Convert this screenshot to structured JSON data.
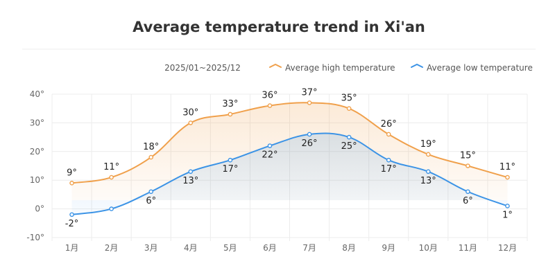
{
  "chart_data": {
    "type": "line",
    "title": "Average temperature trend in Xi'an",
    "date_range": "2025/01~2025/12",
    "categories": [
      "1月",
      "2月",
      "3月",
      "4月",
      "5月",
      "6月",
      "7月",
      "8月",
      "9月",
      "10月",
      "11月",
      "12月"
    ],
    "series": [
      {
        "name": "Average high temperature",
        "color": "#f0a04b",
        "values": [
          9,
          11,
          18,
          30,
          33,
          36,
          37,
          35,
          26,
          19,
          15,
          11
        ],
        "labels": [
          "9°",
          "11°",
          "18°",
          "30°",
          "33°",
          "36°",
          "37°",
          "35°",
          "26°",
          "19°",
          "15°",
          "11°"
        ]
      },
      {
        "name": "Average low temperature",
        "color": "#3b93e6",
        "values": [
          -2,
          0,
          6,
          13,
          17,
          22,
          26,
          25,
          17,
          13,
          6,
          1
        ],
        "labels": [
          "-2°",
          "",
          "6°",
          "13°",
          "17°",
          "22°",
          "26°",
          "25°",
          "17°",
          "13°",
          "6°",
          "1°"
        ]
      }
    ],
    "y_ticks": [
      "40°",
      "30°",
      "20°",
      "10°",
      "0°",
      "-10°"
    ],
    "y_tick_values": [
      40,
      30,
      20,
      10,
      0,
      -10
    ],
    "ylim": [
      -10,
      40
    ],
    "grid": true,
    "legend_position": "top-right"
  }
}
